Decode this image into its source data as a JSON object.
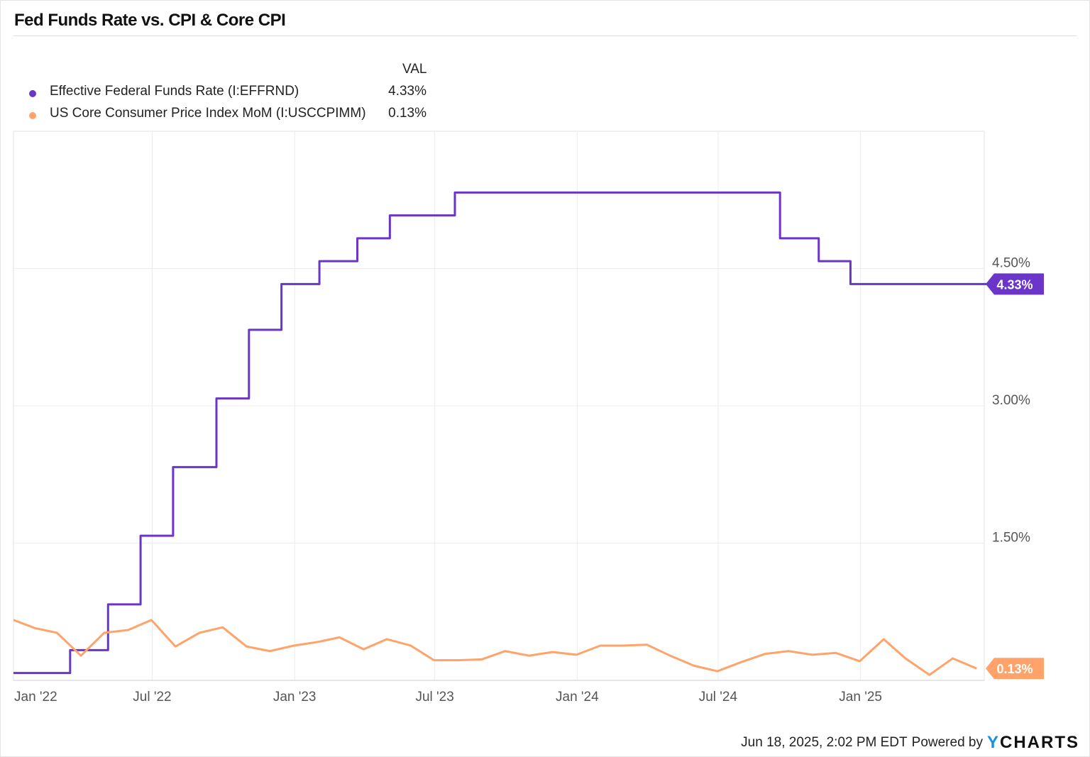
{
  "title": "Fed Funds Rate vs. CPI & Core CPI",
  "legend": {
    "header": "VAL",
    "items": [
      {
        "name": "Effective Federal Funds Rate (I:EFFRND)",
        "value": "4.33%",
        "color": "#6a35c8"
      },
      {
        "name": "US Core Consumer Price Index MoM (I:USCCPIMM)",
        "value": "0.13%",
        "color": "#ffa36b"
      }
    ]
  },
  "footer": {
    "timestamp": "Jun 18, 2025, 2:02 PM EDT",
    "powered_by": "Powered by",
    "logo": "YCHARTS"
  },
  "chart_data": {
    "type": "line",
    "title": "Fed Funds Rate vs. CPI & Core CPI",
    "ylim": [
      0,
      6
    ],
    "y_ticks": [
      "1.50%",
      "3.00%",
      "4.50%"
    ],
    "y_tick_values": [
      1.5,
      3.0,
      4.5
    ],
    "x_ticks": [
      "Jan '22",
      "Jul '22",
      "Jan '23",
      "Jul '23",
      "Jan '24",
      "Jul '24",
      "Jan '25"
    ],
    "x_tick_dates": [
      "2022-01-01",
      "2022-07-01",
      "2023-01-01",
      "2023-07-01",
      "2024-01-01",
      "2024-07-01",
      "2025-01-01"
    ],
    "x_range": [
      "2021-12-31",
      "2025-06-18"
    ],
    "grid": true,
    "y_axis_side": "right",
    "series": [
      {
        "name": "Effective Federal Funds Rate (I:EFFRND)",
        "step": true,
        "last_label": "4.33%",
        "points": [
          [
            "2021-12-31",
            0.08
          ],
          [
            "2022-03-17",
            0.33
          ],
          [
            "2022-05-05",
            0.83
          ],
          [
            "2022-06-16",
            1.58
          ],
          [
            "2022-07-28",
            2.33
          ],
          [
            "2022-09-22",
            3.08
          ],
          [
            "2022-11-03",
            3.83
          ],
          [
            "2022-12-15",
            4.33
          ],
          [
            "2023-02-02",
            4.58
          ],
          [
            "2023-03-23",
            4.83
          ],
          [
            "2023-05-04",
            5.08
          ],
          [
            "2023-07-27",
            5.33
          ],
          [
            "2024-09-19",
            4.83
          ],
          [
            "2024-11-08",
            4.58
          ],
          [
            "2024-12-19",
            4.33
          ],
          [
            "2025-06-17",
            4.33
          ]
        ]
      },
      {
        "name": "US Core Consumer Price Index MoM (I:USCCPIMM)",
        "step": false,
        "last_label": "0.13%",
        "points": [
          [
            "2021-12-31",
            0.66
          ],
          [
            "2022-01-31",
            0.57
          ],
          [
            "2022-02-28",
            0.52
          ],
          [
            "2022-03-31",
            0.27
          ],
          [
            "2022-04-30",
            0.52
          ],
          [
            "2022-05-31",
            0.55
          ],
          [
            "2022-06-30",
            0.66
          ],
          [
            "2022-07-31",
            0.37
          ],
          [
            "2022-08-31",
            0.52
          ],
          [
            "2022-09-30",
            0.58
          ],
          [
            "2022-10-31",
            0.37
          ],
          [
            "2022-11-30",
            0.32
          ],
          [
            "2022-12-31",
            0.38
          ],
          [
            "2023-01-31",
            0.42
          ],
          [
            "2023-02-28",
            0.47
          ],
          [
            "2023-03-31",
            0.34
          ],
          [
            "2023-04-30",
            0.45
          ],
          [
            "2023-05-31",
            0.38
          ],
          [
            "2023-06-30",
            0.22
          ],
          [
            "2023-07-31",
            0.22
          ],
          [
            "2023-08-31",
            0.23
          ],
          [
            "2023-09-30",
            0.32
          ],
          [
            "2023-10-31",
            0.27
          ],
          [
            "2023-11-30",
            0.31
          ],
          [
            "2023-12-31",
            0.28
          ],
          [
            "2024-01-31",
            0.38
          ],
          [
            "2024-02-29",
            0.38
          ],
          [
            "2024-03-31",
            0.39
          ],
          [
            "2024-04-30",
            0.27
          ],
          [
            "2024-05-31",
            0.16
          ],
          [
            "2024-06-30",
            0.1
          ],
          [
            "2024-07-31",
            0.2
          ],
          [
            "2024-08-31",
            0.29
          ],
          [
            "2024-09-30",
            0.32
          ],
          [
            "2024-10-31",
            0.28
          ],
          [
            "2024-11-30",
            0.3
          ],
          [
            "2024-12-31",
            0.21
          ],
          [
            "2025-01-31",
            0.45
          ],
          [
            "2025-02-28",
            0.24
          ],
          [
            "2025-03-31",
            0.06
          ],
          [
            "2025-04-30",
            0.24
          ],
          [
            "2025-05-31",
            0.13
          ]
        ]
      }
    ]
  }
}
